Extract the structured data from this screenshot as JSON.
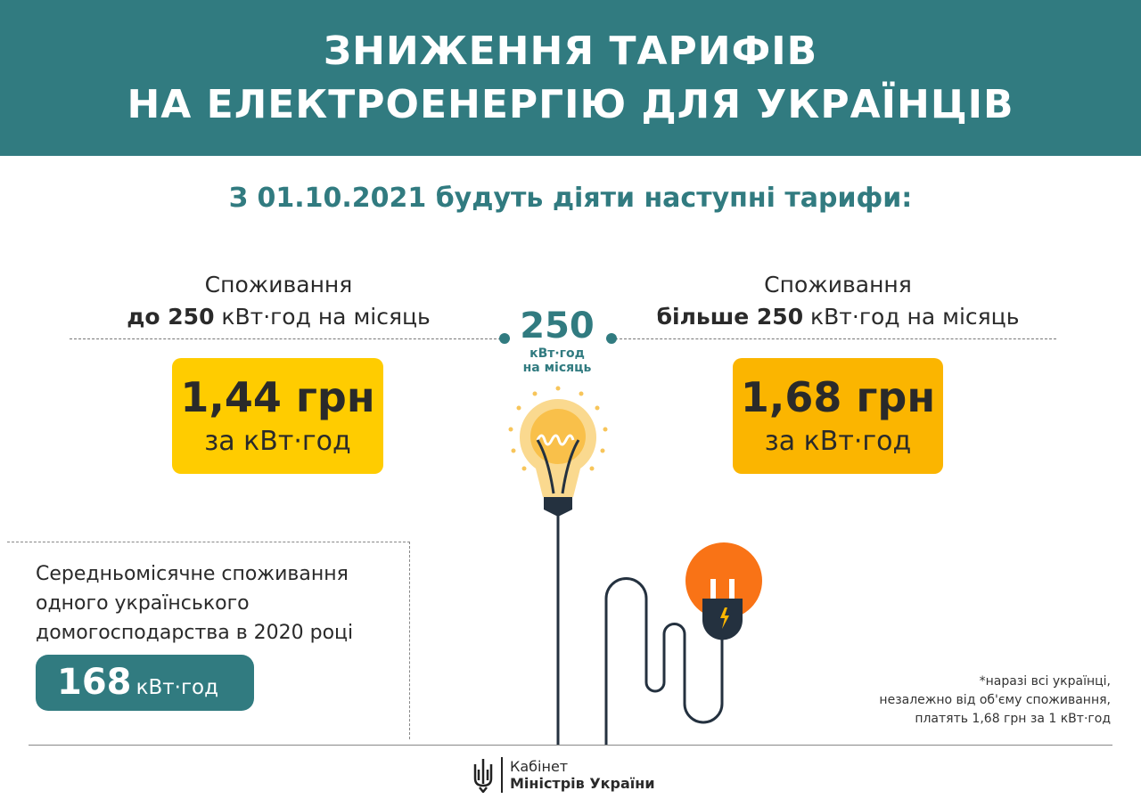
{
  "header": {
    "line1": "ЗНИЖЕННЯ ТАРИФІВ",
    "line2": "НА ЕЛЕКТРОЕНЕРГІЮ ДЛЯ УКРАЇНЦІВ"
  },
  "subtitle": "З 01.10.2021 будуть діяти наступні тарифи:",
  "left": {
    "title": "Споживання",
    "bold": "до 250",
    "rest": " кВт·год на місяць",
    "price": "1,44 грн",
    "unit": "за кВт·год",
    "color": "#ffcc00"
  },
  "right": {
    "title": "Споживання",
    "bold": "більше 250",
    "rest": " кВт·год на місяць",
    "price": "1,68 грн",
    "unit": "за кВт·год",
    "color": "#fbb500"
  },
  "threshold": {
    "value": "250",
    "unit": "кВт·год",
    "period": "на місяць"
  },
  "average": {
    "line1": "Середньомісячне споживання",
    "line2": "одного українського",
    "line3": "домогосподарства в 2020 році",
    "value": "168",
    "unit": "кВт·год"
  },
  "note": {
    "line1": "*наразі всі українці,",
    "line2": "незалежно від об'єму споживання,",
    "line3": "платять 1,68 грн за 1 кВт·год"
  },
  "logo": {
    "line1": "Кабінет",
    "line2": "Міністрів України"
  },
  "colors": {
    "teal": "#317b80",
    "yellow": "#ffcc00",
    "amber": "#fbb500",
    "orange": "#f97316",
    "dark": "#24313f"
  },
  "icons": [
    "lightbulb-icon",
    "plug-icon",
    "trident-icon"
  ]
}
